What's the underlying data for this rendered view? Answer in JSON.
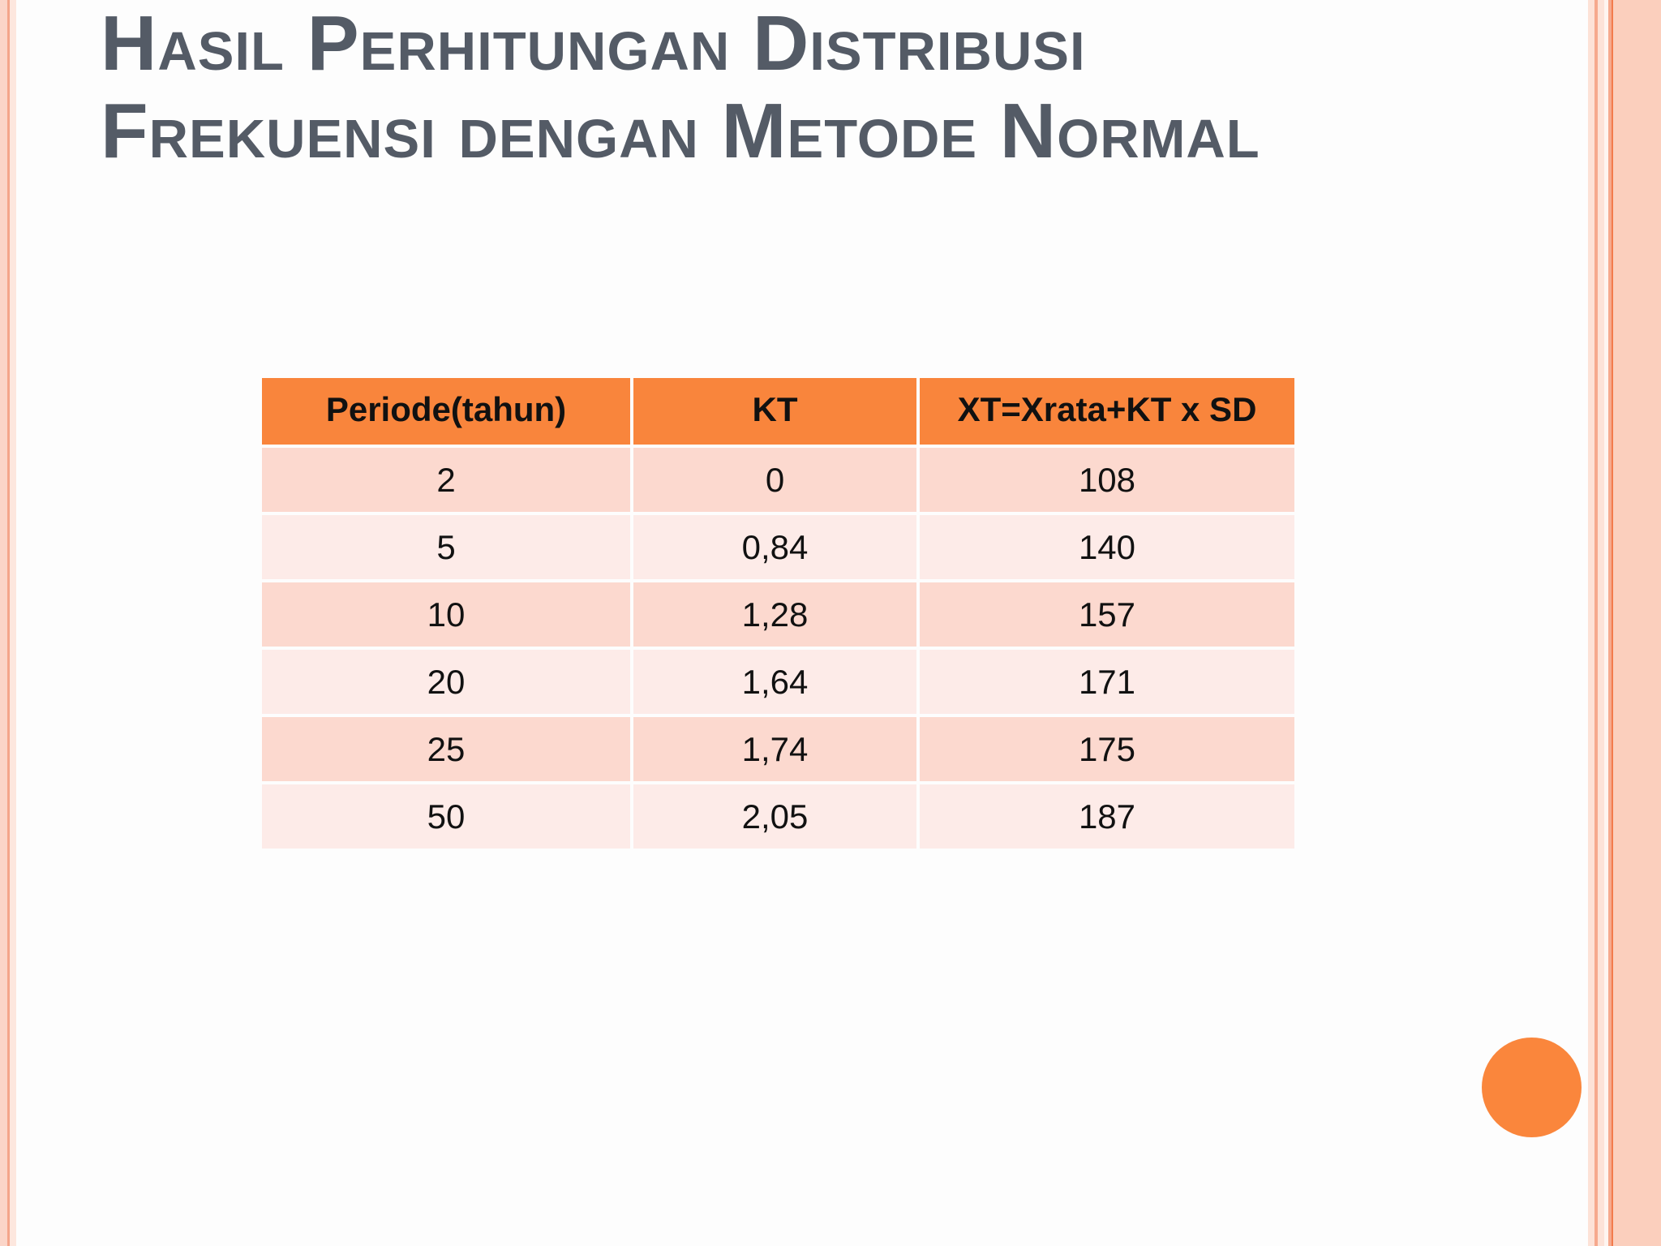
{
  "slide": {
    "title_line1": "Hasil Perhitungan Distribusi",
    "title_line2": "Frekuensi dengan Metode Normal"
  },
  "table": {
    "headers": [
      "Periode(tahun)",
      "KT",
      "XT=Xrata+KT x SD"
    ],
    "rows": [
      [
        "2",
        "0",
        "108"
      ],
      [
        "5",
        "0,84",
        "140"
      ],
      [
        "10",
        "1,28",
        "157"
      ],
      [
        "20",
        "1,64",
        "171"
      ],
      [
        "25",
        "1,74",
        "175"
      ],
      [
        "50",
        "2,05",
        "187"
      ]
    ]
  },
  "colors": {
    "accent": "#fa863c",
    "title_text": "#545b66",
    "row_odd": "#fcd9cf",
    "row_even": "#fdebe8"
  }
}
